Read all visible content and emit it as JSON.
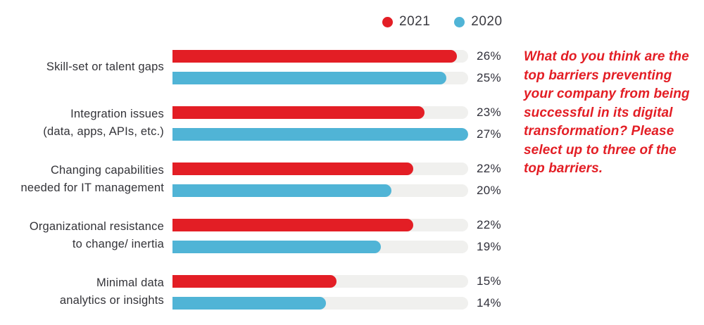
{
  "legend": [
    {
      "label": "2021",
      "color": "#e31e25"
    },
    {
      "label": "2020",
      "color": "#50b4d6"
    }
  ],
  "chart_data": {
    "type": "bar",
    "orientation": "horizontal",
    "title": "",
    "legend_position": "top",
    "categories": [
      "Skill-set or talent gaps",
      "Integration issues\n(data, apps, APIs, etc.)",
      "Changing capabilities\nneeded for IT management",
      "Organizational resistance\nto change/ inertia",
      "Minimal data\nanalytics or insights"
    ],
    "series": [
      {
        "name": "2021",
        "color": "#e31e25",
        "values": [
          26,
          23,
          22,
          22,
          15
        ]
      },
      {
        "name": "2020",
        "color": "#50b4d6",
        "values": [
          25,
          27,
          20,
          19,
          14
        ]
      }
    ],
    "value_suffix": "%",
    "axis_max": 27,
    "track_color": "#f0f0ee",
    "grid": false
  },
  "annotation": {
    "text": "What do you think are the\ntop barriers preventing\nyour company from being\nsuccessful in its digital\ntransformation? Please\nselect up to three of the\ntop barriers.",
    "color": "#e31e25"
  }
}
